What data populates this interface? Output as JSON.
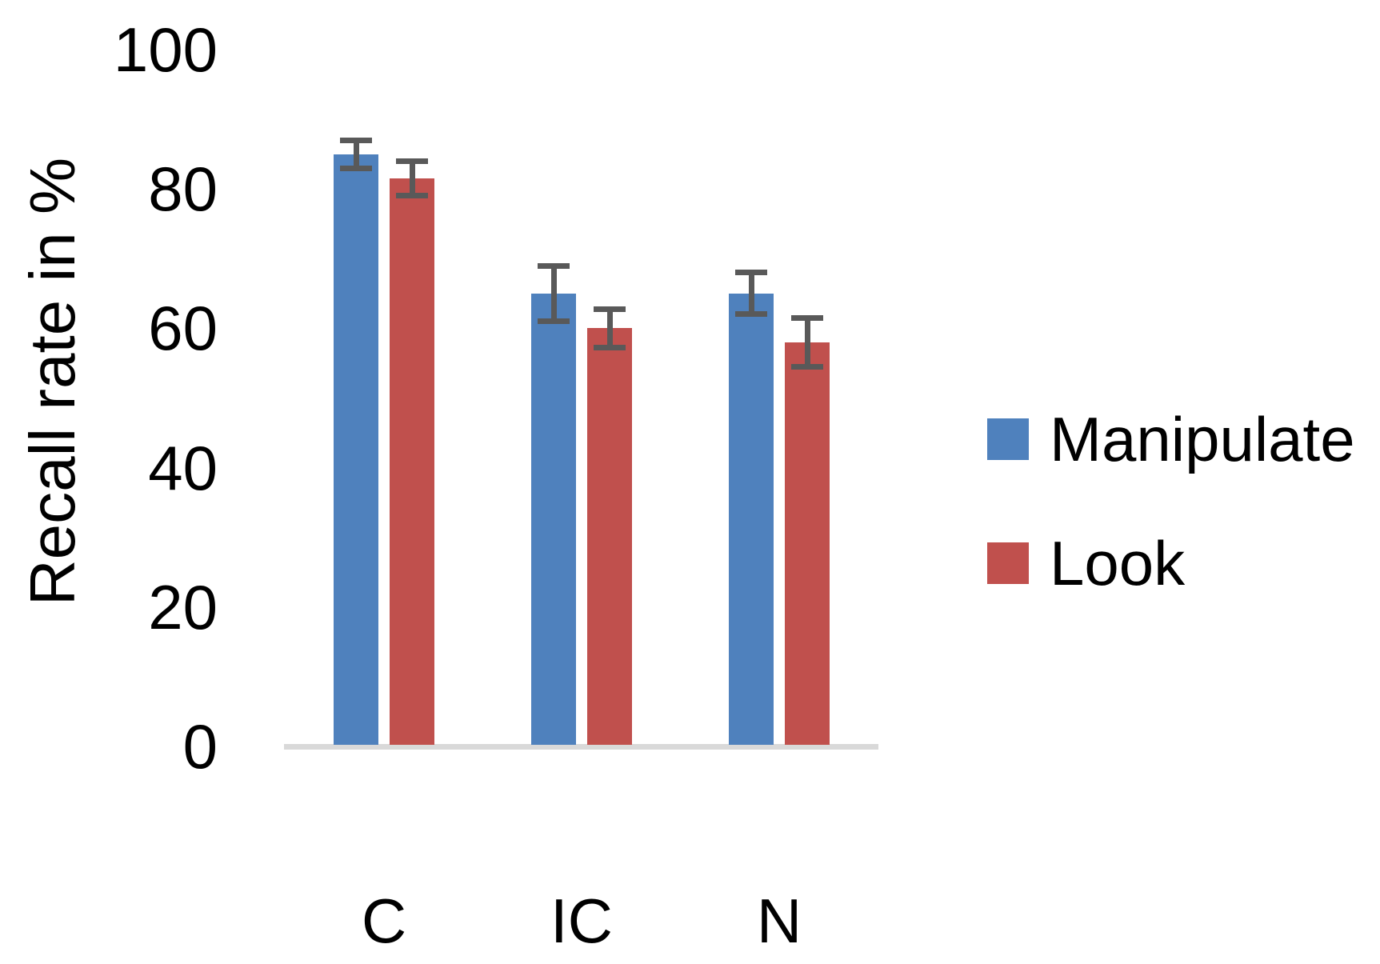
{
  "chart_data": {
    "type": "bar",
    "title": "",
    "xlabel": "",
    "ylabel": "Recall rate in %",
    "categories": [
      "C",
      "IC",
      "N"
    ],
    "series": [
      {
        "name": "Manipulate",
        "color": "#4F81BD",
        "values": [
          85,
          65,
          65
        ],
        "errors": [
          2,
          4,
          3
        ]
      },
      {
        "name": "Look",
        "color": "#C0504D",
        "values": [
          81.5,
          60,
          58
        ],
        "errors": [
          2.5,
          2.75,
          3.5
        ]
      }
    ],
    "ylim": [
      0,
      100
    ],
    "yticks": [
      0,
      20,
      40,
      60,
      80,
      100
    ],
    "grid": false,
    "legend_position": "right",
    "error_bars": true,
    "error_bar_color": "#595959",
    "axis_line_color": "#D9D9D9",
    "text_color": "#000000",
    "background_color": "#FFFFFF"
  }
}
